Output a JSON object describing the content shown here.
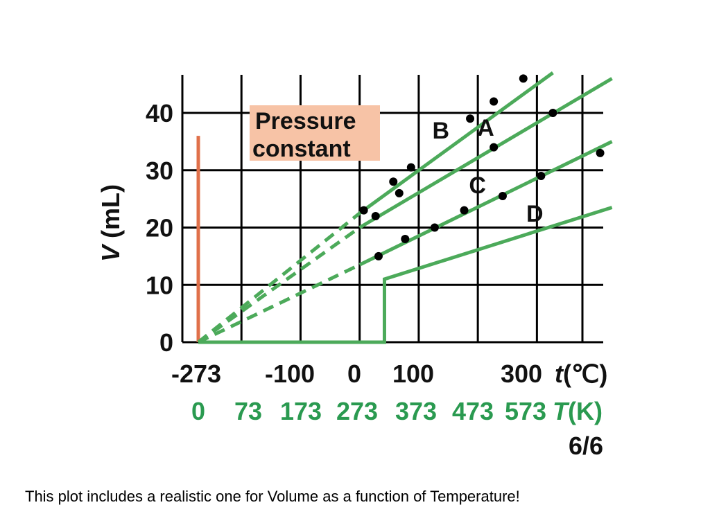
{
  "chart_data": {
    "type": "line",
    "ylabel_var": "V",
    "ylabel_unit": " (mL)",
    "x_celsius_ticks": [
      "-273",
      "-100",
      "0",
      "100",
      "300"
    ],
    "x_celsius_label_var": "t",
    "x_celsius_label_unit": "(℃)",
    "x_kelvin_ticks": [
      "0",
      "73",
      "173",
      "273",
      "373",
      "473",
      "573"
    ],
    "x_kelvin_label_var": "T",
    "x_kelvin_label_unit": "(K)",
    "y_ticks": [
      "0",
      "10",
      "20",
      "30",
      "40"
    ],
    "ylim": [
      0,
      47
    ],
    "xlim": [
      0,
      700
    ],
    "annotation": "Pressure constant",
    "page_number": "6/6",
    "colors": {
      "lines": "#4caa5a",
      "axis_green": "#2a9a50",
      "vertical_marker": "#e0704a",
      "annotation_bg": "#f7c3a6"
    },
    "series": [
      {
        "name": "A",
        "extrapolated": [
          [
            0,
            0
          ],
          [
            273,
            20
          ]
        ],
        "solid": [
          [
            273,
            20
          ],
          [
            700,
            46
          ]
        ],
        "points": [
          [
            300,
            22
          ],
          [
            340,
            26
          ],
          [
            500,
            34
          ],
          [
            600,
            40
          ]
        ]
      },
      {
        "name": "B",
        "extrapolated": [
          [
            0,
            0
          ],
          [
            273,
            22.5
          ]
        ],
        "solid": [
          [
            273,
            22.5
          ],
          [
            600,
            47
          ]
        ],
        "points": [
          [
            280,
            23
          ],
          [
            330,
            28
          ],
          [
            360,
            30.5
          ],
          [
            460,
            39
          ],
          [
            500,
            42
          ],
          [
            550,
            46
          ]
        ]
      },
      {
        "name": "C",
        "extrapolated": [
          [
            0,
            0
          ],
          [
            273,
            13.5
          ]
        ],
        "solid": [
          [
            273,
            13.5
          ],
          [
            700,
            35
          ]
        ],
        "points": [
          [
            305,
            15
          ],
          [
            350,
            18
          ],
          [
            400,
            20
          ],
          [
            450,
            23
          ],
          [
            515,
            25.5
          ],
          [
            580,
            29
          ],
          [
            680,
            33
          ]
        ]
      },
      {
        "name": "D",
        "solid": [
          [
            0,
            0
          ],
          [
            315,
            0
          ],
          [
            315,
            11
          ],
          [
            700,
            23.5
          ]
        ]
      }
    ],
    "vertical_marker": [
      [
        0,
        0
      ],
      [
        0,
        36
      ]
    ]
  },
  "caption": "This plot includes a realistic one for Volume as a function of Temperature!"
}
